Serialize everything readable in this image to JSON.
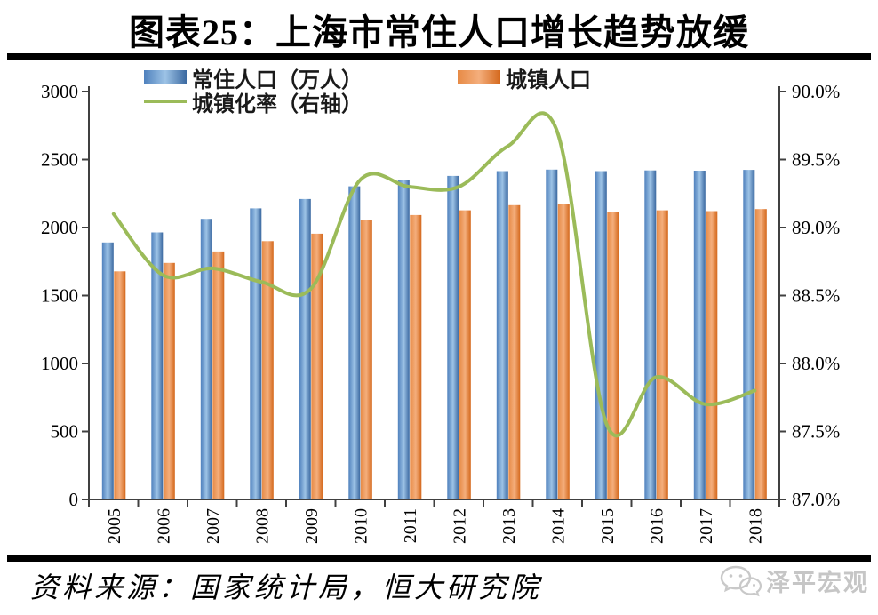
{
  "source": "资料来源：国家统计局，恒大研究院",
  "watermark": {
    "text": "泽平宏观"
  },
  "colors": {
    "bar_blue": [
      "#4f81bd",
      "#9dc3e6",
      "#3a68a0"
    ],
    "bar_orange": [
      "#e78a45",
      "#f4ae7c",
      "#d4681c"
    ],
    "line_green": "#9bbb59",
    "axis": "#404040",
    "rule": "#000000",
    "watermark_gray": "#c6c6c6"
  },
  "chart_data": {
    "type": "bar",
    "subtype": "combo-bar-line",
    "title": "图表25：上海市常住人口增长趋势放缓",
    "legend_position": "top",
    "grid": false,
    "categories": [
      "2005",
      "2006",
      "2007",
      "2008",
      "2009",
      "2010",
      "2011",
      "2012",
      "2013",
      "2014",
      "2015",
      "2016",
      "2017",
      "2018"
    ],
    "series": [
      {
        "name": "常住人口（万人）",
        "type": "bar",
        "axis": "left",
        "values": [
          1890,
          1964,
          2064,
          2141,
          2210,
          2303,
          2347,
          2380,
          2415,
          2426,
          2415,
          2420,
          2418,
          2424
        ]
      },
      {
        "name": "城镇人口",
        "type": "bar",
        "axis": "left",
        "values": [
          1678,
          1740,
          1824,
          1900,
          1955,
          2055,
          2092,
          2127,
          2165,
          2173,
          2115,
          2127,
          2121,
          2136
        ]
      },
      {
        "name": "城镇化率（右轴）",
        "type": "line",
        "axis": "right",
        "values": [
          89.1,
          88.65,
          88.7,
          88.6,
          88.55,
          89.35,
          89.3,
          89.3,
          89.6,
          89.7,
          87.55,
          87.9,
          87.7,
          87.8
        ]
      }
    ],
    "left_axis": {
      "min": 0,
      "max": 3000,
      "step": 500,
      "ticks": [
        "3000",
        "2500",
        "2000",
        "1500",
        "1000",
        "500",
        "0"
      ]
    },
    "right_axis": {
      "min": 87,
      "max": 90,
      "step": 0.5,
      "ticks": [
        "90.0%",
        "89.5%",
        "89.0%",
        "88.5%",
        "88.0%",
        "87.5%",
        "87.0%"
      ]
    }
  }
}
